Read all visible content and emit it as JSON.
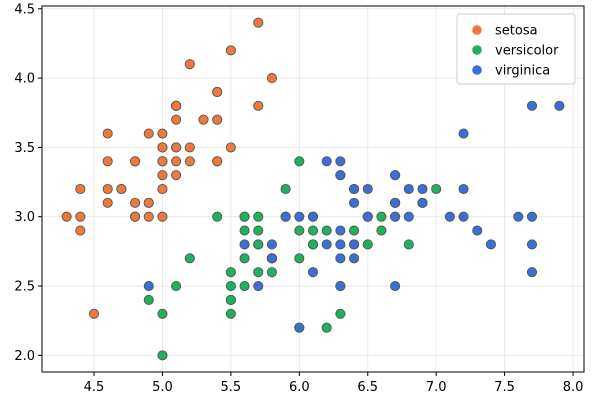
{
  "chart_data": {
    "type": "scatter",
    "title": "",
    "xlabel": "",
    "ylabel": "",
    "xlim": [
      4.12,
      8.08
    ],
    "ylim": [
      1.88,
      4.52
    ],
    "xticks": [
      4.5,
      5.0,
      5.5,
      6.0,
      6.5,
      7.0,
      7.5,
      8.0
    ],
    "xtick_labels": [
      "4.5",
      "5.0",
      "5.5",
      "6.0",
      "6.5",
      "7.0",
      "7.5",
      "8.0"
    ],
    "yticks": [
      2.0,
      2.5,
      3.0,
      3.5,
      4.0,
      4.5
    ],
    "ytick_labels": [
      "2.0",
      "2.5",
      "3.0",
      "3.5",
      "4.0",
      "4.5"
    ],
    "grid": true,
    "legend_position": "top-right",
    "series": [
      {
        "name": "setosa",
        "color": "#ed7a3c",
        "points": [
          [
            5.1,
            3.5
          ],
          [
            4.9,
            3.0
          ],
          [
            4.7,
            3.2
          ],
          [
            4.6,
            3.1
          ],
          [
            5.0,
            3.6
          ],
          [
            5.4,
            3.9
          ],
          [
            4.6,
            3.4
          ],
          [
            5.0,
            3.4
          ],
          [
            4.4,
            2.9
          ],
          [
            4.9,
            3.1
          ],
          [
            5.4,
            3.7
          ],
          [
            4.8,
            3.4
          ],
          [
            4.8,
            3.0
          ],
          [
            4.3,
            3.0
          ],
          [
            5.8,
            4.0
          ],
          [
            5.7,
            4.4
          ],
          [
            5.4,
            3.9
          ],
          [
            5.1,
            3.5
          ],
          [
            5.7,
            3.8
          ],
          [
            5.1,
            3.8
          ],
          [
            5.4,
            3.4
          ],
          [
            5.1,
            3.7
          ],
          [
            4.6,
            3.6
          ],
          [
            5.1,
            3.3
          ],
          [
            4.8,
            3.4
          ],
          [
            5.0,
            3.0
          ],
          [
            5.0,
            3.4
          ],
          [
            5.2,
            3.5
          ],
          [
            5.2,
            3.4
          ],
          [
            4.7,
            3.2
          ],
          [
            4.8,
            3.1
          ],
          [
            5.4,
            3.4
          ],
          [
            5.2,
            4.1
          ],
          [
            5.5,
            4.2
          ],
          [
            4.9,
            3.1
          ],
          [
            5.0,
            3.2
          ],
          [
            5.5,
            3.5
          ],
          [
            4.9,
            3.6
          ],
          [
            4.4,
            3.0
          ],
          [
            5.1,
            3.4
          ],
          [
            5.0,
            3.5
          ],
          [
            4.5,
            2.3
          ],
          [
            4.4,
            3.2
          ],
          [
            5.0,
            3.5
          ],
          [
            5.1,
            3.8
          ],
          [
            4.8,
            3.0
          ],
          [
            5.1,
            3.8
          ],
          [
            4.6,
            3.2
          ],
          [
            5.3,
            3.7
          ],
          [
            5.0,
            3.3
          ]
        ]
      },
      {
        "name": "versicolor",
        "color": "#1db25c",
        "points": [
          [
            7.0,
            3.2
          ],
          [
            6.4,
            3.2
          ],
          [
            6.9,
            3.1
          ],
          [
            5.5,
            2.3
          ],
          [
            6.5,
            2.8
          ],
          [
            5.7,
            2.8
          ],
          [
            6.3,
            3.3
          ],
          [
            4.9,
            2.4
          ],
          [
            6.6,
            2.9
          ],
          [
            5.2,
            2.7
          ],
          [
            5.0,
            2.0
          ],
          [
            5.9,
            3.0
          ],
          [
            6.0,
            2.2
          ],
          [
            6.1,
            2.9
          ],
          [
            5.6,
            2.9
          ],
          [
            6.7,
            3.1
          ],
          [
            5.6,
            3.0
          ],
          [
            5.8,
            2.7
          ],
          [
            6.2,
            2.2
          ],
          [
            5.6,
            2.5
          ],
          [
            5.9,
            3.2
          ],
          [
            6.1,
            2.8
          ],
          [
            6.3,
            2.5
          ],
          [
            6.1,
            2.8
          ],
          [
            6.4,
            2.9
          ],
          [
            6.6,
            3.0
          ],
          [
            6.8,
            2.8
          ],
          [
            6.7,
            3.0
          ],
          [
            6.0,
            2.9
          ],
          [
            5.7,
            2.6
          ],
          [
            5.5,
            2.4
          ],
          [
            5.5,
            2.4
          ],
          [
            5.8,
            2.7
          ],
          [
            6.0,
            2.7
          ],
          [
            5.4,
            3.0
          ],
          [
            6.0,
            3.4
          ],
          [
            6.7,
            3.1
          ],
          [
            6.3,
            2.3
          ],
          [
            5.6,
            3.0
          ],
          [
            5.5,
            2.5
          ],
          [
            5.5,
            2.6
          ],
          [
            6.1,
            3.0
          ],
          [
            5.8,
            2.6
          ],
          [
            5.0,
            2.3
          ],
          [
            5.6,
            2.7
          ],
          [
            5.7,
            3.0
          ],
          [
            5.7,
            2.9
          ],
          [
            6.2,
            2.9
          ],
          [
            5.1,
            2.5
          ],
          [
            5.7,
            2.8
          ]
        ]
      },
      {
        "name": "virginica",
        "color": "#3b6fd6",
        "points": [
          [
            6.3,
            3.3
          ],
          [
            5.8,
            2.7
          ],
          [
            7.1,
            3.0
          ],
          [
            6.3,
            2.9
          ],
          [
            6.5,
            3.0
          ],
          [
            7.6,
            3.0
          ],
          [
            4.9,
            2.5
          ],
          [
            7.3,
            2.9
          ],
          [
            6.7,
            2.5
          ],
          [
            7.2,
            3.6
          ],
          [
            6.5,
            3.2
          ],
          [
            6.4,
            2.7
          ],
          [
            6.8,
            3.0
          ],
          [
            5.7,
            2.5
          ],
          [
            5.8,
            2.8
          ],
          [
            6.4,
            3.2
          ],
          [
            6.5,
            3.0
          ],
          [
            7.7,
            3.8
          ],
          [
            7.7,
            2.6
          ],
          [
            6.0,
            2.2
          ],
          [
            6.9,
            3.2
          ],
          [
            5.6,
            2.8
          ],
          [
            7.7,
            2.8
          ],
          [
            6.3,
            2.7
          ],
          [
            6.7,
            3.3
          ],
          [
            7.2,
            3.2
          ],
          [
            6.2,
            2.8
          ],
          [
            6.1,
            3.0
          ],
          [
            6.4,
            2.8
          ],
          [
            7.2,
            3.0
          ],
          [
            7.4,
            2.8
          ],
          [
            7.9,
            3.8
          ],
          [
            6.4,
            2.8
          ],
          [
            6.3,
            2.8
          ],
          [
            6.1,
            2.6
          ],
          [
            7.7,
            3.0
          ],
          [
            6.3,
            3.4
          ],
          [
            6.4,
            3.1
          ],
          [
            6.0,
            3.0
          ],
          [
            6.9,
            3.1
          ],
          [
            6.7,
            3.1
          ],
          [
            6.9,
            3.1
          ],
          [
            5.8,
            2.7
          ],
          [
            6.8,
            3.2
          ],
          [
            6.7,
            3.3
          ],
          [
            6.7,
            3.0
          ],
          [
            6.3,
            2.5
          ],
          [
            6.5,
            3.0
          ],
          [
            6.2,
            3.4
          ],
          [
            5.9,
            3.0
          ]
        ]
      }
    ]
  }
}
